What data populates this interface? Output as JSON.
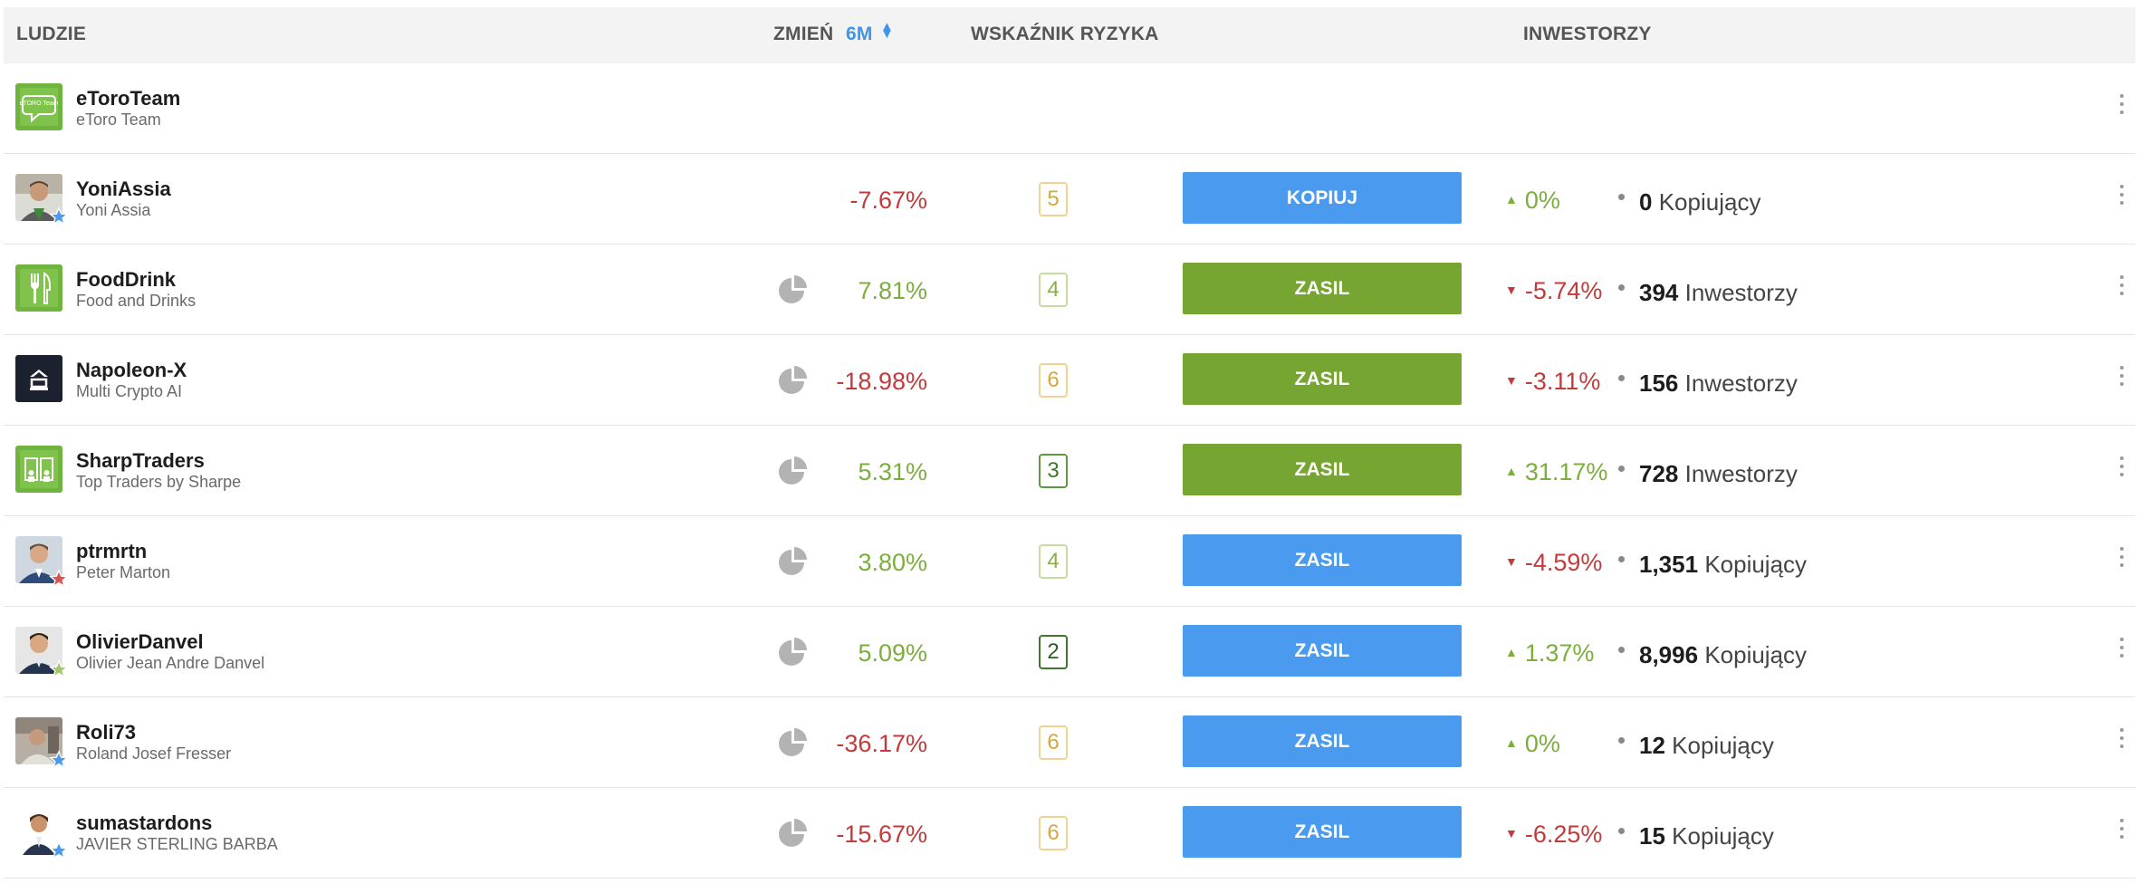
{
  "header": {
    "people": "LUDZIE",
    "change": "ZMIEŃ",
    "period": "6M",
    "sort_icon": "sort-icon",
    "risk": "WSKAŹNIK RYZYKA",
    "investors": "INWESTORZY"
  },
  "colors": {
    "negative": "#c23b3b",
    "positive": "#7bae3c",
    "button_blue": "#4a9bef",
    "button_green": "#76a631",
    "accent": "#3f95e8"
  },
  "rows": [
    {
      "username": "eToroTeam",
      "fullname": "eToro Team",
      "avatar_logo": "eTORO Team",
      "change": "",
      "risk": "",
      "action": "",
      "trend": "",
      "count": "",
      "count_label": ""
    },
    {
      "username": "YoniAssia",
      "fullname": "Yoni Assia",
      "change": "-7.67%",
      "change_sign": "neg",
      "risk": "5",
      "action": "KOPIUJ",
      "button": "blue",
      "trend": "0%",
      "trend_dir": "up",
      "count": "0",
      "count_label": "Kopiujący",
      "star": "blue"
    },
    {
      "username": "FoodDrink",
      "fullname": "Food and Drinks",
      "change": "7.81%",
      "change_sign": "pos",
      "risk": "4",
      "action": "ZASIL",
      "button": "green",
      "trend": "-5.74%",
      "trend_dir": "down",
      "count": "394",
      "count_label": "Inwestorzy"
    },
    {
      "username": "Napoleon-X",
      "fullname": "Multi Crypto AI",
      "change": "-18.98%",
      "change_sign": "neg",
      "risk": "6",
      "action": "ZASIL",
      "button": "green",
      "trend": "-3.11%",
      "trend_dir": "down",
      "count": "156",
      "count_label": "Inwestorzy"
    },
    {
      "username": "SharpTraders",
      "fullname": "Top Traders by Sharpe",
      "change": "5.31%",
      "change_sign": "pos",
      "risk": "3",
      "action": "ZASIL",
      "button": "green",
      "trend": "31.17%",
      "trend_dir": "up",
      "count": "728",
      "count_label": "Inwestorzy"
    },
    {
      "username": "ptrmrtn",
      "fullname": "Peter Marton",
      "change": "3.80%",
      "change_sign": "pos",
      "risk": "4",
      "action": "ZASIL",
      "button": "blue",
      "trend": "-4.59%",
      "trend_dir": "down",
      "count": "1,351",
      "count_label": "Kopiujący",
      "star": "red"
    },
    {
      "username": "OlivierDanvel",
      "fullname": "Olivier Jean Andre Danvel",
      "change": "5.09%",
      "change_sign": "pos",
      "risk": "2",
      "action": "ZASIL",
      "button": "blue",
      "trend": "1.37%",
      "trend_dir": "up",
      "count": "8,996",
      "count_label": "Kopiujący",
      "star": "green"
    },
    {
      "username": "Roli73",
      "fullname": "Roland Josef Fresser",
      "change": "-36.17%",
      "change_sign": "neg",
      "risk": "6",
      "action": "ZASIL",
      "button": "blue",
      "trend": "0%",
      "trend_dir": "up",
      "count": "12",
      "count_label": "Kopiujący",
      "star": "blue"
    },
    {
      "username": "sumastardons",
      "fullname": "JAVIER STERLING BARBA",
      "change": "-15.67%",
      "change_sign": "neg",
      "risk": "6",
      "action": "ZASIL",
      "button": "blue",
      "trend": "-6.25%",
      "trend_dir": "down",
      "count": "15",
      "count_label": "Kopiujący",
      "star": "blue"
    }
  ]
}
